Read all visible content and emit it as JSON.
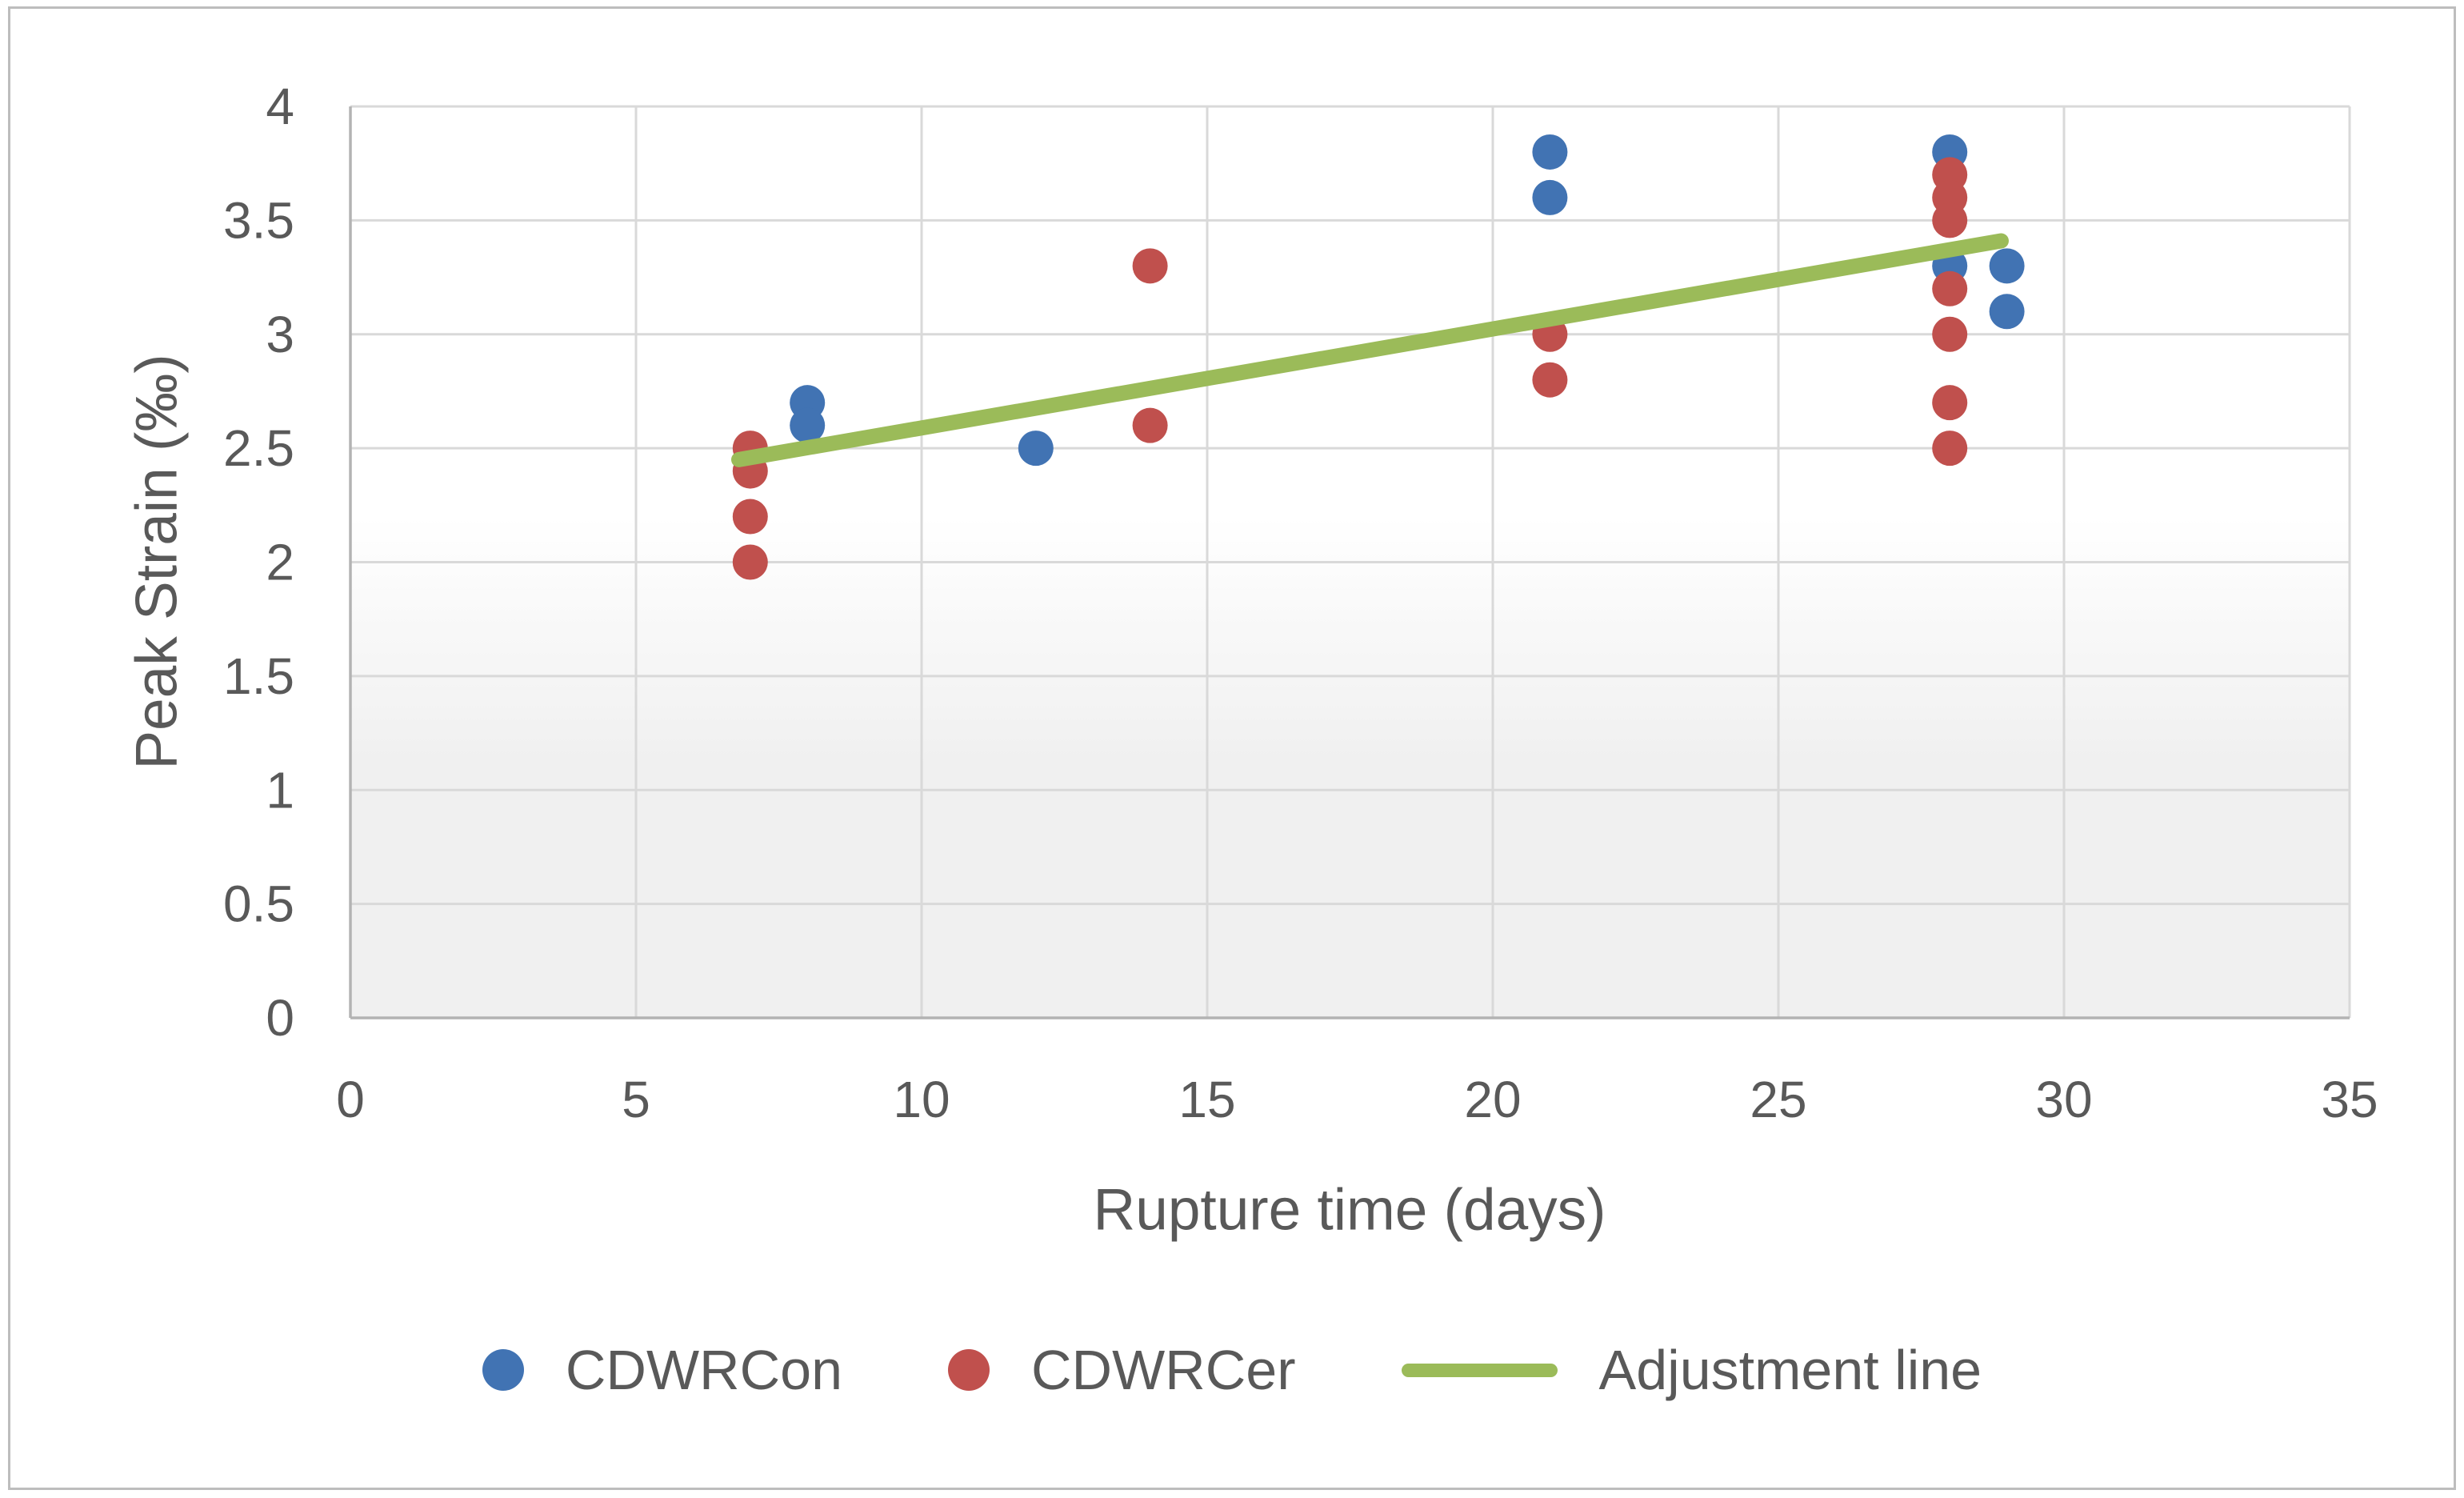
{
  "chart_data": {
    "type": "scatter",
    "title": "",
    "xlabel": "Rupture time (days)",
    "ylabel": "Peak Strain (‰)",
    "xlim": [
      0,
      35
    ],
    "ylim": [
      0,
      4
    ],
    "x_ticks": [
      0,
      5,
      10,
      15,
      20,
      25,
      30,
      35
    ],
    "y_ticks": [
      0,
      0.5,
      1,
      1.5,
      2,
      2.5,
      3,
      3.5,
      4
    ],
    "grid": true,
    "legend_position": "bottom",
    "series": [
      {
        "name": "CDWRCon",
        "type": "scatter",
        "color": "#4173b3",
        "points": [
          [
            8,
            2.7
          ],
          [
            8,
            2.6
          ],
          [
            12,
            2.5
          ],
          [
            21,
            3.8
          ],
          [
            21,
            3.6
          ],
          [
            28,
            3.8
          ],
          [
            28,
            3.3
          ],
          [
            29,
            3.3
          ],
          [
            29,
            3.1
          ]
        ]
      },
      {
        "name": "CDWRCer",
        "type": "scatter",
        "color": "#c0504d",
        "points": [
          [
            7,
            2.5
          ],
          [
            7,
            2.4
          ],
          [
            7,
            2.2
          ],
          [
            7,
            2.0
          ],
          [
            14,
            3.3
          ],
          [
            14,
            2.6
          ],
          [
            21,
            3.0
          ],
          [
            21,
            2.8
          ],
          [
            28,
            3.7
          ],
          [
            28,
            3.6
          ],
          [
            28,
            3.5
          ],
          [
            28,
            3.2
          ],
          [
            28,
            3.0
          ],
          [
            28,
            2.7
          ],
          [
            28,
            2.5
          ]
        ]
      },
      {
        "name": "Adjustment line",
        "type": "line",
        "color": "#9bbb59",
        "points": [
          [
            6.8,
            2.45
          ],
          [
            28.9,
            3.41
          ]
        ]
      }
    ],
    "colors": {
      "gridline": "#d9d9d9",
      "axis_line": "#b3b3b3",
      "text": "#595959",
      "plot_bg_top": "#ffffff",
      "plot_bg_bottom": "#f0f0f0",
      "frame_border": "#bdbdbd"
    }
  }
}
